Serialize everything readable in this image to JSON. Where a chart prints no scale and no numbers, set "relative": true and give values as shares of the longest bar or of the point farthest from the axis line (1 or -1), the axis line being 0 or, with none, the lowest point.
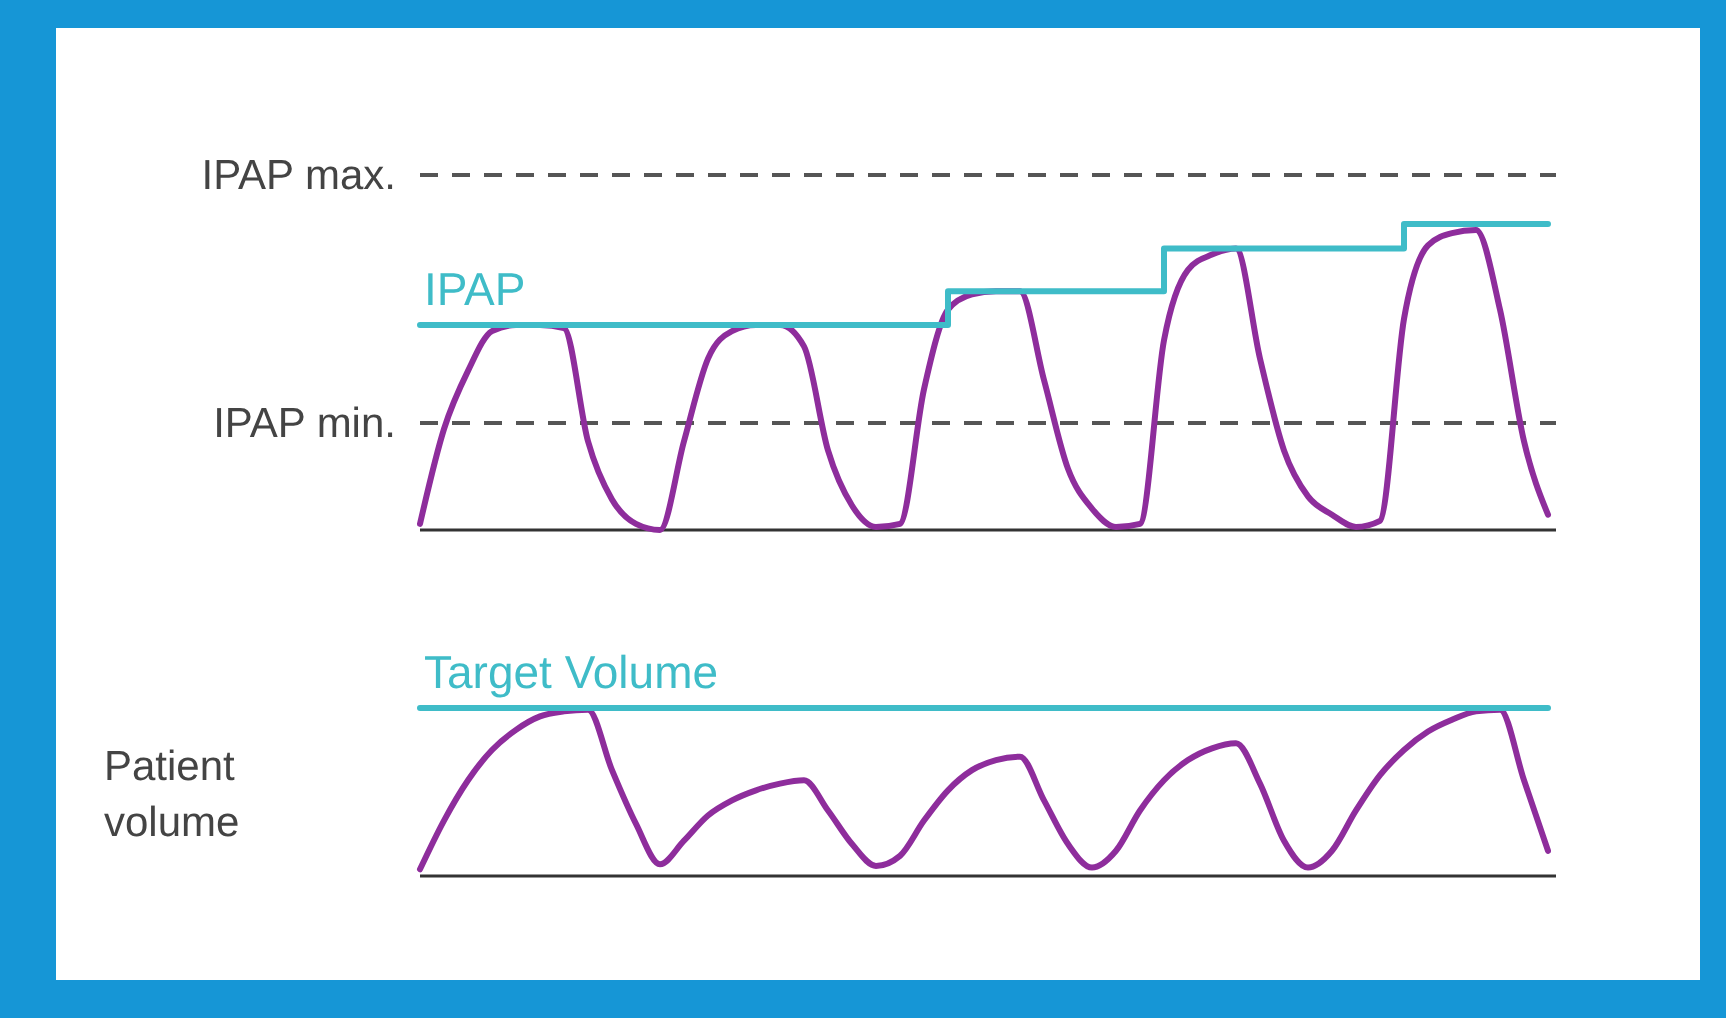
{
  "chart_data": [
    {
      "type": "line",
      "relative": true,
      "categories": [
        null,
        null,
        null,
        null,
        null,
        null,
        null,
        null,
        null,
        null,
        null,
        null,
        null,
        null,
        null,
        null,
        null,
        null,
        null,
        null,
        null,
        null,
        null,
        null,
        null,
        null,
        null,
        null,
        null,
        null,
        null,
        null,
        null,
        null,
        null,
        null,
        null,
        null,
        null,
        null,
        null,
        null,
        null,
        null,
        null,
        null,
        null,
        null
      ],
      "series": [
        {
          "color": "#8e2d9c",
          "values": [
            0.02,
            0.33,
            0.52,
            0.65,
            0.67,
            0.67,
            0.66,
            0.29,
            0.1,
            0.02,
            0,
            0.29,
            0.56,
            0.65,
            0.67,
            0.67,
            0.6,
            0.26,
            0.08,
            0.01,
            0.02,
            0.46,
            0.72,
            0.77,
            0.78,
            0.78,
            0.49,
            0.2,
            0.07,
            0.01,
            0.02,
            0.62,
            0.85,
            0.9,
            0.92,
            0.56,
            0.26,
            0.11,
            0.05,
            0.01,
            0.03,
            0.69,
            0.93,
            0.97,
            0.98,
            0.72,
            0.29,
            0.05
          ]
        },
        {
          "type": "step",
          "name": "IPAP",
          "color": "#3fbcc8",
          "values": [
            0.67,
            0.67,
            0.67,
            0.67,
            0.67,
            0.67,
            0.67,
            0.67,
            0.67,
            0.67,
            0.67,
            0.67,
            0.67,
            0.67,
            0.67,
            0.67,
            0.67,
            0.67,
            0.67,
            0.67,
            0.67,
            0.67,
            0.78,
            0.78,
            0.78,
            0.78,
            0.78,
            0.78,
            0.78,
            0.78,
            0.78,
            0.92,
            0.92,
            0.92,
            0.92,
            0.92,
            0.92,
            0.92,
            0.92,
            0.92,
            0.92,
            1,
            1,
            1,
            1,
            1,
            1,
            1
          ]
        }
      ],
      "ref_lines": [
        {
          "axis": "y",
          "value": 1.16,
          "label": "IPAP max.",
          "color": "#555555",
          "line_style": "dashed"
        },
        {
          "axis": "y",
          "value": 0.35,
          "label": "IPAP min.",
          "color": "#555555",
          "line_style": "dashed"
        }
      ]
    },
    {
      "type": "line",
      "relative": true,
      "ylabel": "Patient volume",
      "categories": [
        null,
        null,
        null,
        null,
        null,
        null,
        null,
        null,
        null,
        null,
        null,
        null,
        null,
        null,
        null,
        null,
        null,
        null,
        null,
        null,
        null,
        null,
        null,
        null,
        null,
        null,
        null,
        null,
        null,
        null,
        null,
        null,
        null,
        null,
        null,
        null,
        null,
        null,
        null,
        null,
        null,
        null,
        null,
        null,
        null,
        null,
        null,
        null
      ],
      "series": [
        {
          "color": "#8e2d9c",
          "values": [
            0.04,
            0.33,
            0.57,
            0.75,
            0.87,
            0.95,
            0.98,
            0.99,
            0.63,
            0.31,
            0.07,
            0.21,
            0.36,
            0.45,
            0.51,
            0.55,
            0.57,
            0.39,
            0.19,
            0.06,
            0.12,
            0.33,
            0.51,
            0.63,
            0.69,
            0.71,
            0.45,
            0.19,
            0.05,
            0.15,
            0.39,
            0.57,
            0.69,
            0.76,
            0.79,
            0.55,
            0.21,
            0.05,
            0.15,
            0.39,
            0.6,
            0.75,
            0.86,
            0.93,
            0.98,
            0.99,
            0.57,
            0.15
          ]
        },
        {
          "name": "Target Volume",
          "color": "#3fbcc8",
          "values": [
            1,
            1,
            1,
            1,
            1,
            1,
            1,
            1,
            1,
            1,
            1,
            1,
            1,
            1,
            1,
            1,
            1,
            1,
            1,
            1,
            1,
            1,
            1,
            1,
            1,
            1,
            1,
            1,
            1,
            1,
            1,
            1,
            1,
            1,
            1,
            1,
            1,
            1,
            1,
            1,
            1,
            1,
            1,
            1,
            1,
            1,
            1,
            1
          ]
        }
      ]
    }
  ]
}
